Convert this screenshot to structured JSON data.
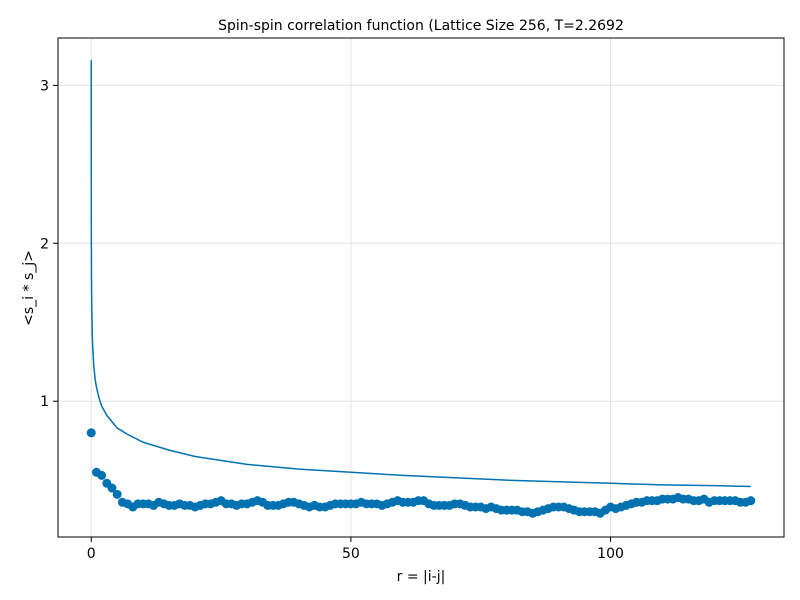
{
  "chart_data": {
    "type": "scatter",
    "title": "Spin-spin correlation function (Lattice Size 256, T=2.2692",
    "xlabel": "r = |i-j|",
    "ylabel": "<s_i * s_j>",
    "xlim": [
      -6.4,
      133.4
    ],
    "ylim": [
      0.14,
      3.3
    ],
    "xticks": [
      0,
      50,
      100
    ],
    "yticks": [
      1,
      2,
      3
    ],
    "grid": true,
    "color": "#0072b2",
    "series": [
      {
        "kind": "points",
        "x": [
          0,
          1,
          2,
          3,
          4,
          5,
          6,
          7,
          8,
          9,
          10,
          11,
          12,
          13,
          14,
          15,
          16,
          17,
          18,
          19,
          20,
          21,
          22,
          23,
          24,
          25,
          26,
          27,
          28,
          29,
          30,
          31,
          32,
          33,
          34,
          35,
          36,
          37,
          38,
          39,
          40,
          41,
          42,
          43,
          44,
          45,
          46,
          47,
          48,
          49,
          50,
          51,
          52,
          53,
          54,
          55,
          56,
          57,
          58,
          59,
          60,
          61,
          62,
          63,
          64,
          65,
          66,
          67,
          68,
          69,
          70,
          71,
          72,
          73,
          74,
          75,
          76,
          77,
          78,
          79,
          80,
          81,
          82,
          83,
          84,
          85,
          86,
          87,
          88,
          89,
          90,
          91,
          92,
          93,
          94,
          95,
          96,
          97,
          98,
          99,
          100,
          101,
          102,
          103,
          104,
          105,
          106,
          107,
          108,
          109,
          110,
          111,
          112,
          113,
          114,
          115,
          116,
          117,
          118,
          119,
          120,
          121,
          122,
          123,
          124,
          125,
          126,
          127
        ],
        "y": [
          0.8,
          0.55,
          0.53,
          0.48,
          0.45,
          0.41,
          0.36,
          0.35,
          0.33,
          0.35,
          0.35,
          0.35,
          0.34,
          0.36,
          0.35,
          0.34,
          0.34,
          0.35,
          0.34,
          0.34,
          0.33,
          0.34,
          0.35,
          0.35,
          0.36,
          0.37,
          0.35,
          0.35,
          0.34,
          0.35,
          0.35,
          0.36,
          0.37,
          0.36,
          0.34,
          0.34,
          0.34,
          0.35,
          0.36,
          0.36,
          0.35,
          0.34,
          0.33,
          0.34,
          0.33,
          0.33,
          0.34,
          0.35,
          0.35,
          0.35,
          0.35,
          0.35,
          0.36,
          0.35,
          0.35,
          0.35,
          0.34,
          0.35,
          0.36,
          0.37,
          0.36,
          0.36,
          0.36,
          0.37,
          0.37,
          0.35,
          0.34,
          0.34,
          0.34,
          0.34,
          0.35,
          0.35,
          0.34,
          0.33,
          0.33,
          0.33,
          0.32,
          0.33,
          0.32,
          0.31,
          0.31,
          0.31,
          0.31,
          0.3,
          0.3,
          0.29,
          0.3,
          0.31,
          0.32,
          0.33,
          0.33,
          0.33,
          0.32,
          0.31,
          0.3,
          0.3,
          0.3,
          0.3,
          0.29,
          0.31,
          0.33,
          0.32,
          0.33,
          0.34,
          0.35,
          0.36,
          0.36,
          0.37,
          0.37,
          0.37,
          0.38,
          0.38,
          0.38,
          0.39,
          0.38,
          0.38,
          0.37,
          0.37,
          0.38,
          0.36,
          0.37,
          0.37,
          0.37,
          0.37,
          0.37,
          0.36,
          0.36,
          0.37
        ]
      },
      {
        "kind": "line",
        "x": [
          0.001,
          0.005,
          0.02,
          0.05,
          0.1,
          0.2,
          0.3,
          0.5,
          0.75,
          1,
          1.5,
          2,
          3,
          4,
          5,
          7,
          10,
          15,
          20,
          30,
          40,
          50,
          60,
          70,
          80,
          90,
          100,
          110,
          120,
          127
        ],
        "y": [
          3.16,
          2.54,
          2.04,
          1.78,
          1.6,
          1.42,
          1.33,
          1.22,
          1.14,
          1.09,
          1.02,
          0.97,
          0.91,
          0.87,
          0.83,
          0.79,
          0.74,
          0.69,
          0.65,
          0.6,
          0.57,
          0.55,
          0.53,
          0.515,
          0.5,
          0.49,
          0.48,
          0.47,
          0.465,
          0.46
        ]
      }
    ]
  }
}
